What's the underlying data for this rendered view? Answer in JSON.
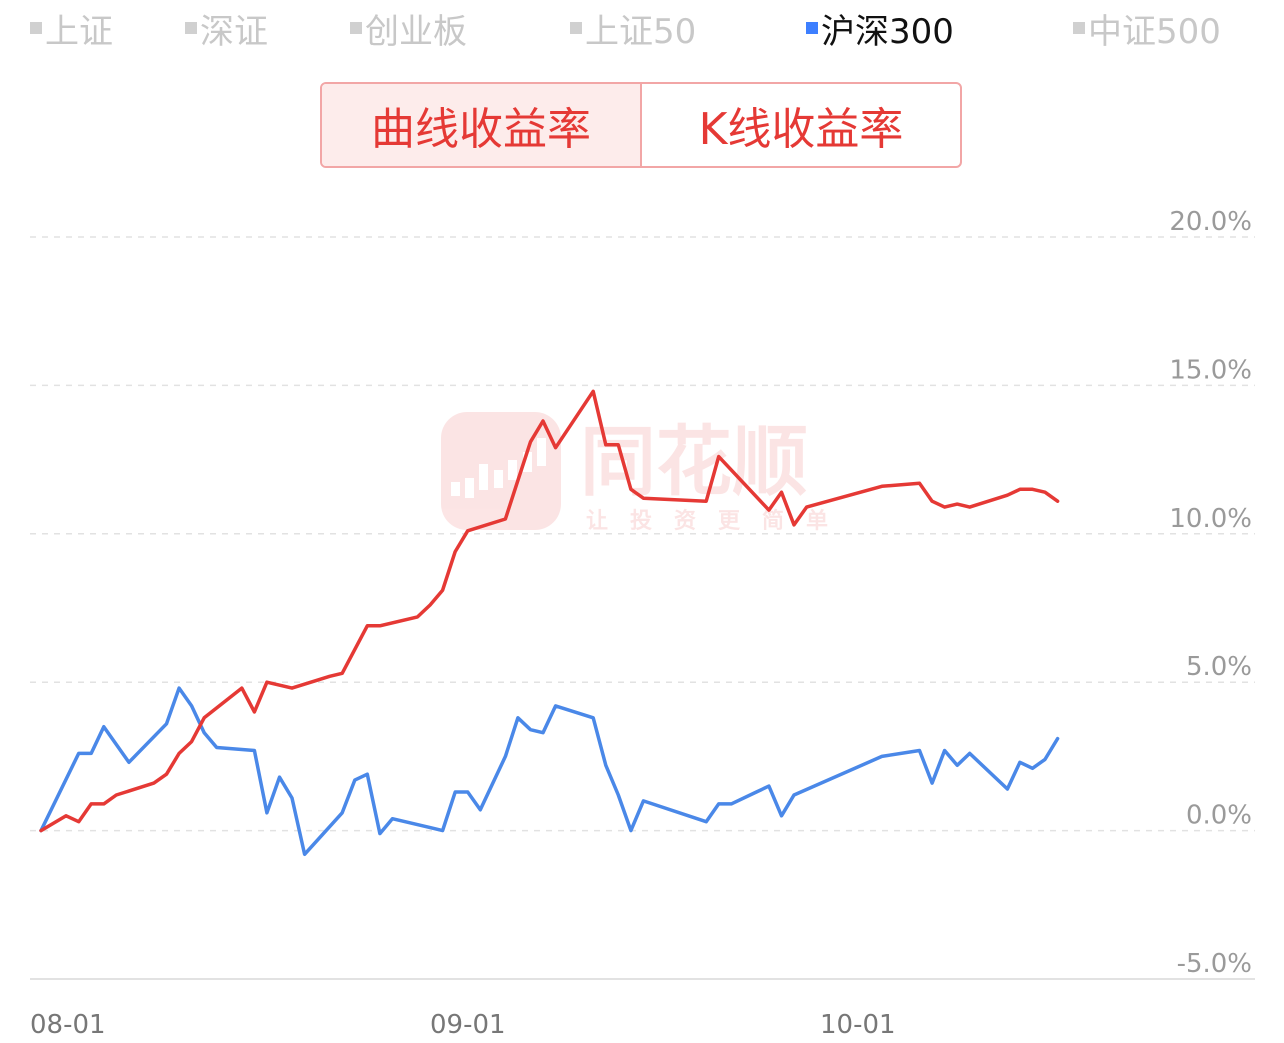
{
  "index_tabs": [
    {
      "label": "上证",
      "active": false
    },
    {
      "label": "深证",
      "active": false
    },
    {
      "label": "创业板",
      "active": false
    },
    {
      "label": "上证50",
      "active": false
    },
    {
      "label": "沪深300",
      "active": true
    },
    {
      "label": "中证500",
      "active": false
    }
  ],
  "toggle": {
    "curve_label": "曲线收益率",
    "kline_label": "K线收益率",
    "selected": "curve"
  },
  "watermark": {
    "brand": "同花顺",
    "slogan": "让投资更简单"
  },
  "colors": {
    "series_red": "#e53935",
    "series_blue": "#4a88e8",
    "active_swatch": "#3d7fff",
    "inactive": "#c8c8c8",
    "grid": "#e2e2e2"
  },
  "chart_data": {
    "type": "line",
    "ylim": [
      -5,
      20
    ],
    "yticks": [
      20,
      15,
      10,
      5,
      0,
      -5
    ],
    "ytick_labels": [
      "20.0%",
      "15.0%",
      "10.0%",
      "5.0%",
      "0.0%",
      "-5.0%"
    ],
    "xticks": [
      {
        "day": 0,
        "label": "08-01"
      },
      {
        "day": 31,
        "label": "09-01"
      },
      {
        "day": 61,
        "label": "10-01"
      }
    ],
    "grid": "horizontal dashed",
    "legend": "top",
    "series": [
      {
        "name": "",
        "color": "#e53935",
        "points": [
          [
            1,
            0.0
          ],
          [
            3,
            0.5
          ],
          [
            4,
            0.3
          ],
          [
            5,
            0.9
          ],
          [
            6,
            0.9
          ],
          [
            7,
            1.2
          ],
          [
            10,
            1.6
          ],
          [
            11,
            1.9
          ],
          [
            12,
            2.6
          ],
          [
            13,
            3.0
          ],
          [
            14,
            3.8
          ],
          [
            17,
            4.8
          ],
          [
            18,
            4.0
          ],
          [
            19,
            5.0
          ],
          [
            21,
            4.8
          ],
          [
            24,
            5.2
          ],
          [
            25,
            5.3
          ],
          [
            27,
            6.9
          ],
          [
            28,
            6.9
          ],
          [
            31,
            7.2
          ],
          [
            32,
            7.6
          ],
          [
            33,
            8.1
          ],
          [
            34,
            9.4
          ],
          [
            35,
            10.1
          ],
          [
            38,
            10.5
          ],
          [
            39,
            11.8
          ],
          [
            40,
            13.1
          ],
          [
            41,
            13.8
          ],
          [
            42,
            12.9
          ],
          [
            45,
            14.8
          ],
          [
            46,
            13.0
          ],
          [
            47,
            13.0
          ],
          [
            48,
            11.5
          ],
          [
            49,
            11.2
          ],
          [
            54,
            11.1
          ],
          [
            55,
            12.6
          ],
          [
            59,
            10.8
          ],
          [
            60,
            11.4
          ],
          [
            61,
            10.3
          ],
          [
            62,
            10.9
          ],
          [
            68,
            11.6
          ],
          [
            71,
            11.7
          ],
          [
            72,
            11.1
          ],
          [
            73,
            10.9
          ],
          [
            74,
            11.0
          ],
          [
            75,
            10.9
          ],
          [
            78,
            11.3
          ],
          [
            79,
            11.5
          ],
          [
            80,
            11.5
          ],
          [
            81,
            11.4
          ],
          [
            82,
            11.1
          ]
        ]
      },
      {
        "name": "",
        "color": "#4a88e8",
        "points": [
          [
            1,
            0.0
          ],
          [
            4,
            2.6
          ],
          [
            5,
            2.6
          ],
          [
            6,
            3.5
          ],
          [
            8,
            2.3
          ],
          [
            11,
            3.6
          ],
          [
            12,
            4.8
          ],
          [
            13,
            4.2
          ],
          [
            14,
            3.3
          ],
          [
            15,
            2.8
          ],
          [
            18,
            2.7
          ],
          [
            19,
            0.6
          ],
          [
            20,
            1.8
          ],
          [
            21,
            1.1
          ],
          [
            22,
            -0.8
          ],
          [
            25,
            0.6
          ],
          [
            26,
            1.7
          ],
          [
            27,
            1.9
          ],
          [
            28,
            -0.1
          ],
          [
            29,
            0.4
          ],
          [
            32,
            0.1
          ],
          [
            33,
            0.0
          ],
          [
            34,
            1.3
          ],
          [
            35,
            1.3
          ],
          [
            36,
            0.7
          ],
          [
            38,
            2.5
          ],
          [
            39,
            3.8
          ],
          [
            40,
            3.4
          ],
          [
            41,
            3.3
          ],
          [
            42,
            4.2
          ],
          [
            45,
            3.8
          ],
          [
            46,
            2.2
          ],
          [
            47,
            1.2
          ],
          [
            48,
            0.0
          ],
          [
            49,
            1.0
          ],
          [
            54,
            0.3
          ],
          [
            55,
            0.9
          ],
          [
            56,
            0.9
          ],
          [
            58,
            1.3
          ],
          [
            59,
            1.5
          ],
          [
            60,
            0.5
          ],
          [
            61,
            1.2
          ],
          [
            68,
            2.5
          ],
          [
            71,
            2.7
          ],
          [
            72,
            1.6
          ],
          [
            73,
            2.7
          ],
          [
            74,
            2.2
          ],
          [
            75,
            2.6
          ],
          [
            78,
            1.4
          ],
          [
            79,
            2.3
          ],
          [
            80,
            2.1
          ],
          [
            81,
            2.4
          ],
          [
            82,
            3.1
          ]
        ]
      }
    ]
  }
}
